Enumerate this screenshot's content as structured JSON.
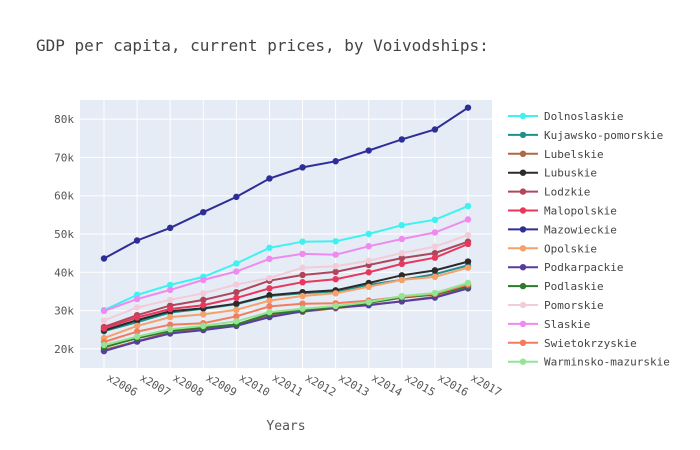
{
  "chart_data": {
    "type": "line",
    "title": "GDP per capita, current prices, by Voivodships:",
    "xlabel": "Years",
    "ylabel": "",
    "x": [
      "x2006",
      "x2007",
      "x2008",
      "x2009",
      "x2010",
      "x2011",
      "x2012",
      "x2013",
      "x2014",
      "x2015",
      "x2016",
      "x2017"
    ],
    "ylim": [
      15000,
      85000
    ],
    "yticks": [
      20000,
      30000,
      40000,
      50000,
      60000,
      70000,
      80000
    ],
    "ytick_labels": [
      "20k",
      "30k",
      "40k",
      "50k",
      "60k",
      "70k",
      "80k"
    ],
    "grid": true,
    "legend": "right",
    "plot_bg": "#e5ecf6",
    "series": [
      {
        "name": "Dolnoslaskie",
        "color": "#3ef2f2",
        "values": [
          30100,
          34100,
          36700,
          38800,
          42300,
          46400,
          48000,
          48100,
          50000,
          52300,
          53700,
          57300
        ]
      },
      {
        "name": "Kujawsko-pomorskie",
        "color": "#20908e",
        "values": [
          24600,
          27000,
          29500,
          30500,
          31700,
          33800,
          34500,
          35000,
          36700,
          38000,
          39500,
          41800
        ]
      },
      {
        "name": "Lubelskie",
        "color": "#b06840",
        "values": [
          19700,
          22000,
          24300,
          25100,
          26200,
          28600,
          29700,
          30600,
          31500,
          32400,
          33600,
          36000
        ]
      },
      {
        "name": "Lubuskie",
        "color": "#2b2b2b",
        "values": [
          24800,
          27500,
          29800,
          30600,
          31800,
          34000,
          34800,
          35300,
          37200,
          39200,
          40500,
          42800
        ]
      },
      {
        "name": "Lodzkie",
        "color": "#b0465c",
        "values": [
          25700,
          28800,
          31300,
          32800,
          34800,
          37800,
          39300,
          40100,
          41900,
          43700,
          45000,
          48000
        ]
      },
      {
        "name": "Malopolskie",
        "color": "#e8375d",
        "values": [
          25300,
          28200,
          30400,
          31400,
          33300,
          35800,
          37400,
          38200,
          40000,
          42200,
          43800,
          47400
        ]
      },
      {
        "name": "Mazowieckie",
        "color": "#2e2e96",
        "values": [
          43600,
          48300,
          51600,
          55700,
          59700,
          64500,
          67400,
          69000,
          71800,
          74700,
          77300,
          83000
        ]
      },
      {
        "name": "Opolskie",
        "color": "#f6a16a",
        "values": [
          22800,
          26000,
          28300,
          29000,
          30200,
          32600,
          33800,
          34500,
          36200,
          38000,
          38800,
          41200
        ]
      },
      {
        "name": "Podkarpackie",
        "color": "#5a3ca0",
        "values": [
          19400,
          21900,
          24000,
          24900,
          26000,
          28300,
          29800,
          30800,
          31400,
          32400,
          33400,
          35800
        ]
      },
      {
        "name": "Podlaskie",
        "color": "#2d7a2d",
        "values": [
          20400,
          22800,
          24700,
          25500,
          26400,
          29100,
          30100,
          31000,
          32000,
          33400,
          34200,
          36400
        ]
      },
      {
        "name": "Pomorskie",
        "color": "#f2ccd8",
        "values": [
          27400,
          30800,
          32800,
          34500,
          36800,
          38500,
          41200,
          41600,
          43000,
          45000,
          46700,
          49700
        ]
      },
      {
        "name": "Slaskie",
        "color": "#ee8af0",
        "values": [
          29900,
          33000,
          35400,
          38000,
          40200,
          43500,
          44800,
          44600,
          46800,
          48700,
          50400,
          53800
        ]
      },
      {
        "name": "Swietokrzyskie",
        "color": "#f27d5e",
        "values": [
          21800,
          24500,
          26300,
          26700,
          28500,
          31100,
          31800,
          31900,
          32600,
          33600,
          34400,
          36800
        ]
      },
      {
        "name": "Warminsko-mazurskie",
        "color": "#94e494",
        "values": [
          21000,
          23200,
          25100,
          26000,
          27200,
          29600,
          30500,
          31200,
          32200,
          33800,
          34600,
          37200
        ]
      }
    ]
  }
}
